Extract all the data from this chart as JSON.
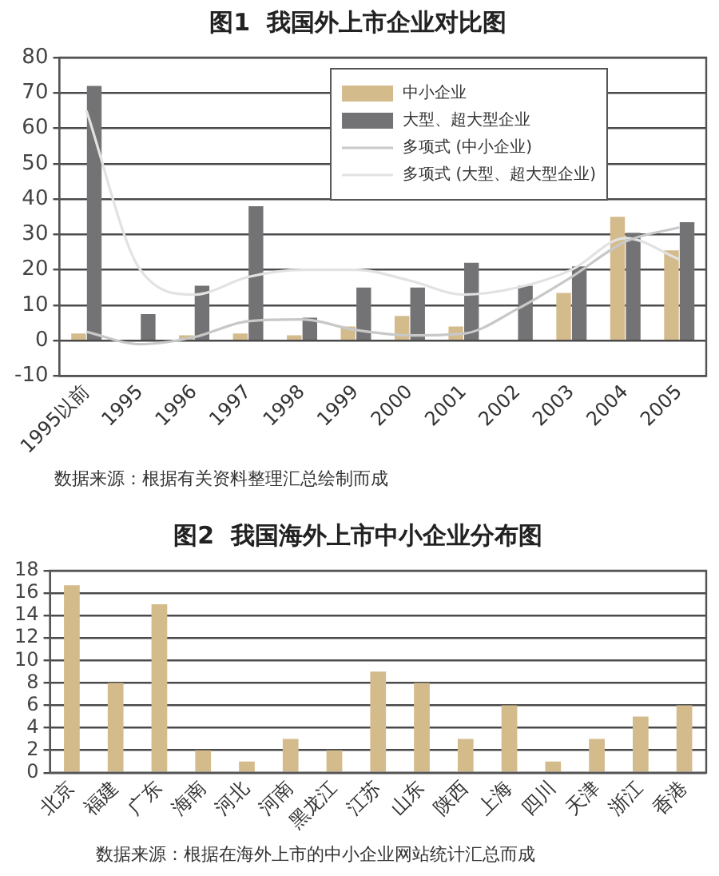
{
  "chart_data": [
    {
      "type": "bar",
      "title": "图1  我国外上市企业对比图",
      "categories": [
        "1995以前",
        "1995",
        "1996",
        "1997",
        "1998",
        "1999",
        "2000",
        "2001",
        "2002",
        "2003",
        "2004",
        "2005"
      ],
      "series": [
        {
          "name": "中小企业",
          "color": "#d4bb8c",
          "values": [
            2,
            0,
            1.5,
            2,
            1.5,
            4,
            7,
            4,
            0,
            13.5,
            35,
            25.5
          ]
        },
        {
          "name": "大型、超大型企业",
          "color": "#737375",
          "values": [
            72,
            7.5,
            15.5,
            38,
            6.5,
            15,
            15,
            22,
            15.5,
            21,
            30.5,
            33.5
          ]
        },
        {
          "name": "多项式 (中小企业)",
          "type": "line",
          "color": "#c8c8c8",
          "values": [
            2.5,
            -1,
            1,
            5.5,
            6,
            3,
            1.5,
            2,
            9,
            18,
            28,
            32
          ]
        },
        {
          "name": "多项式 (大型、超大型企业)",
          "type": "line",
          "color": "#e2e2e2",
          "values": [
            65,
            20,
            13,
            18,
            20,
            20,
            17,
            13,
            15,
            20,
            29,
            23
          ]
        }
      ],
      "ylim": [
        -10,
        80
      ],
      "yticks": [
        -10,
        0,
        10,
        20,
        30,
        40,
        50,
        60,
        70,
        80
      ],
      "grid": "y",
      "legend": "top right",
      "annotations": [
        "数据来源：根据有关资料整理汇总绘制而成"
      ]
    },
    {
      "type": "bar",
      "title": "图2  我国海外上市中小企业分布图",
      "categories": [
        "北京",
        "福建",
        "广东",
        "海南",
        "河北",
        "河南",
        "黑龙江",
        "江苏",
        "山东",
        "陕西",
        "上海",
        "四川",
        "天津",
        "浙江",
        "香港"
      ],
      "values": [
        16.7,
        8,
        15,
        2,
        1,
        3,
        2,
        9,
        8,
        3,
        6,
        1,
        3,
        5,
        6
      ],
      "color": "#d4bb8c",
      "ylim": [
        0,
        18
      ],
      "yticks": [
        0,
        2,
        4,
        6,
        8,
        10,
        12,
        14,
        16,
        18
      ],
      "grid": "y",
      "annotations": [
        "数据来源：根据在海外上市的中小企业网站统计汇总而成"
      ]
    }
  ]
}
